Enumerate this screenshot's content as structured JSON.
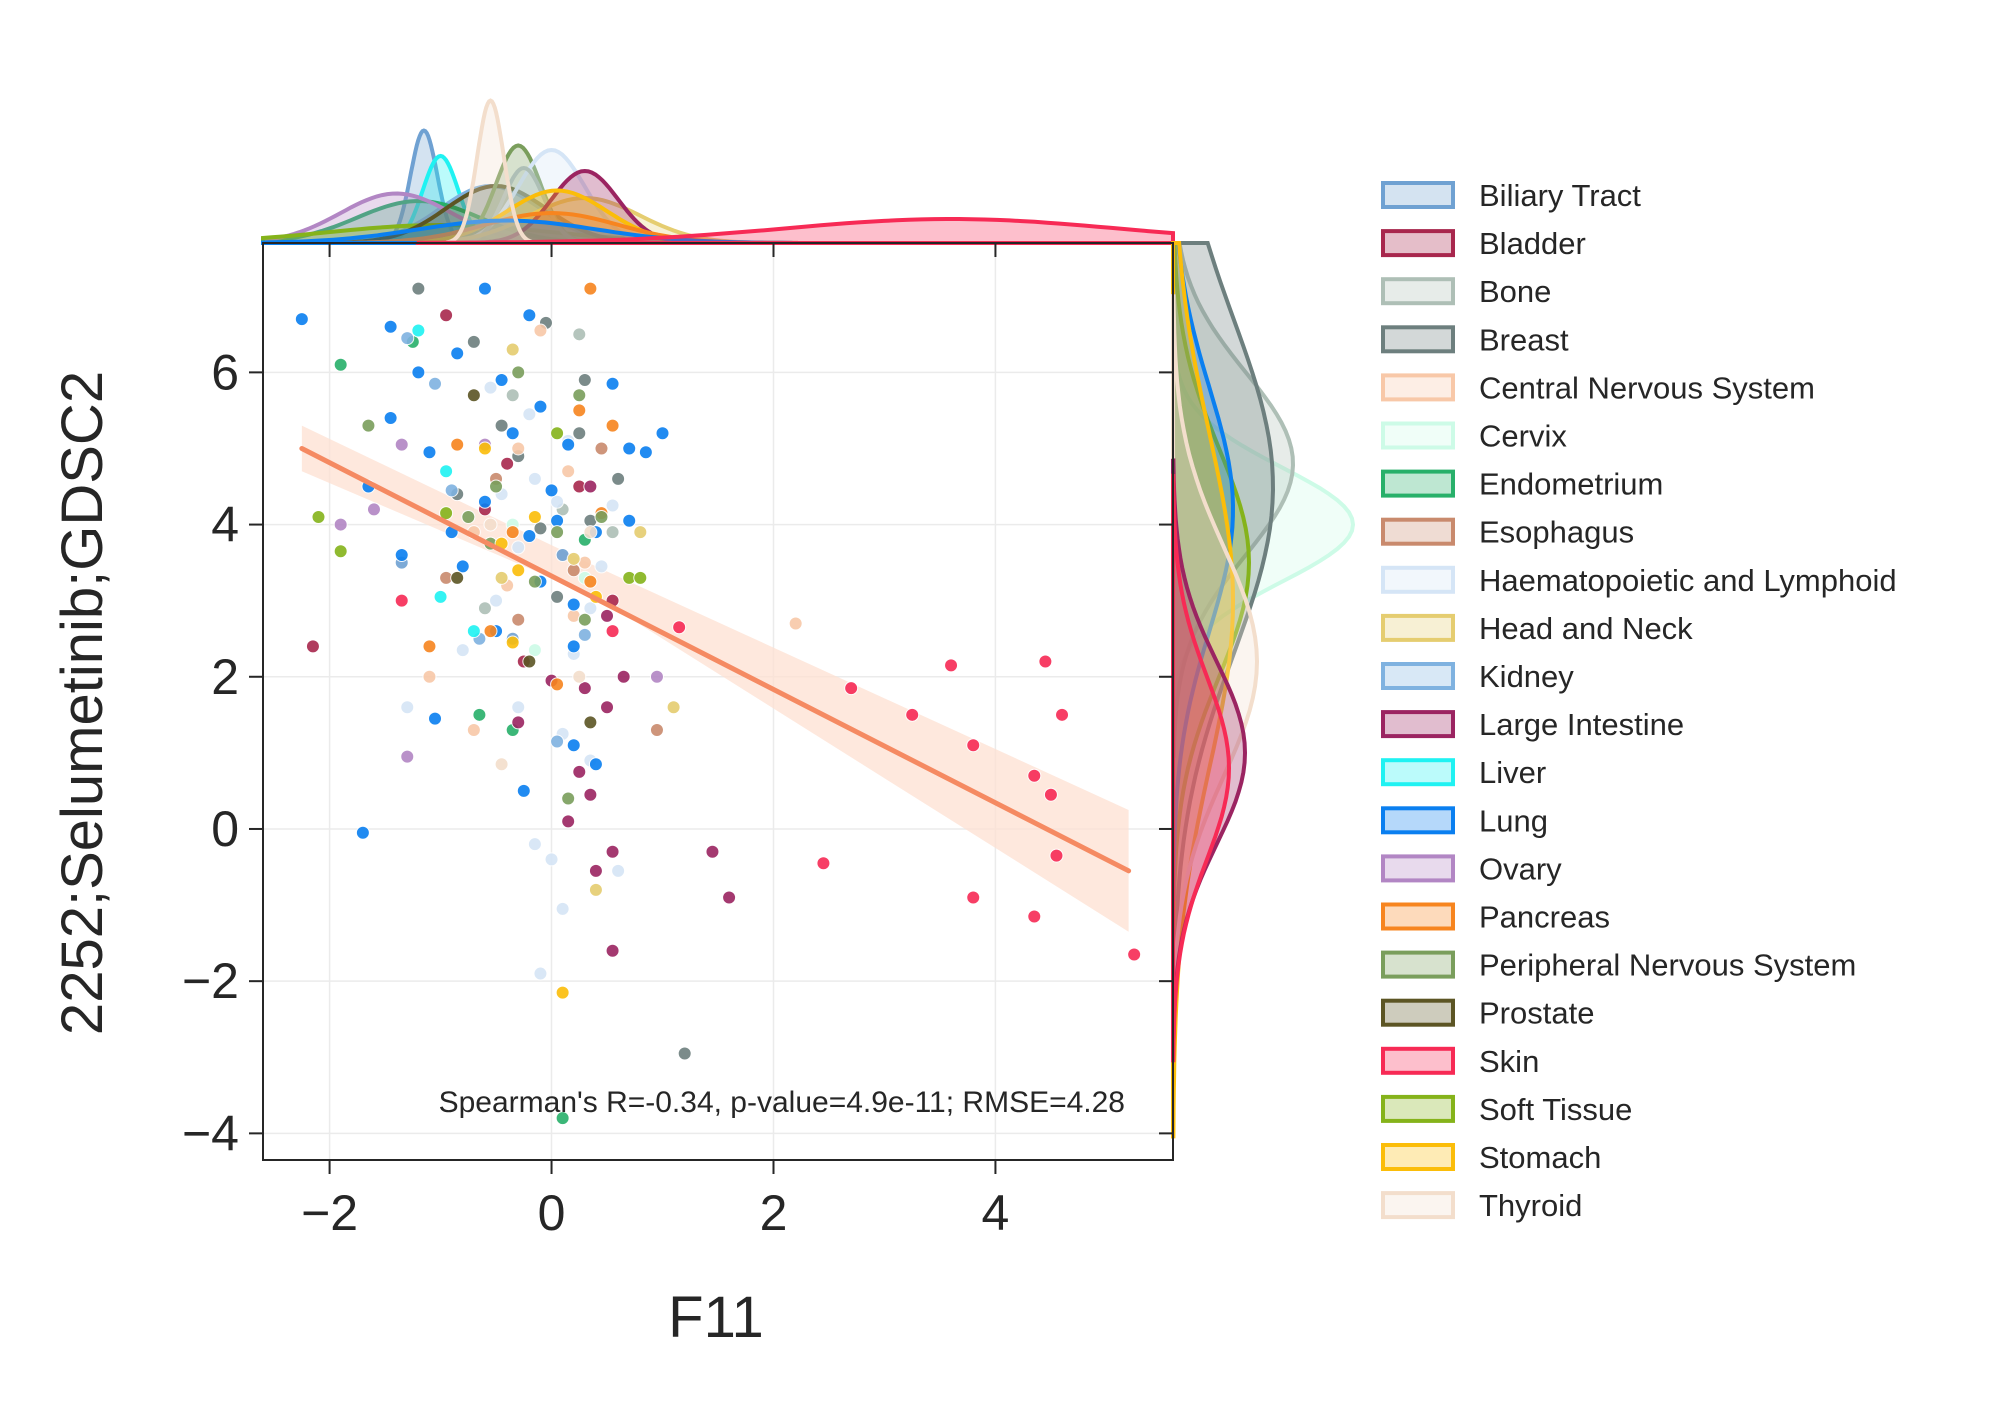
{
  "chart_data": {
    "type": "scatter",
    "xlabel": "F11",
    "ylabel": "2252;Selumetinib;GDSC2",
    "xlim": [
      -2.6,
      5.6
    ],
    "ylim": [
      -4.35,
      7.7
    ],
    "xticks": [
      -2,
      0,
      2,
      4
    ],
    "yticks": [
      -4,
      -2,
      0,
      2,
      4,
      6
    ],
    "x_tick_labels": [
      "−2",
      "0",
      "2",
      "4"
    ],
    "y_tick_labels": [
      "−4",
      "−2",
      "0",
      "2",
      "4",
      "6"
    ],
    "grid": true,
    "legend_position": "right",
    "annotation": "Spearman's R=-0.34, p-value=4.9e-11; RMSE=4.28",
    "regression": {
      "color": "#f58a62",
      "band_color": "#fde0d2",
      "line": [
        [
          -2.25,
          5.0
        ],
        [
          5.2,
          -0.55
        ]
      ],
      "band_upper": [
        [
          -2.25,
          5.3
        ],
        [
          0.4,
          3.45
        ],
        [
          5.2,
          0.25
        ]
      ],
      "band_lower": [
        [
          -2.25,
          4.7
        ],
        [
          0.4,
          3.05
        ],
        [
          5.2,
          -1.35
        ]
      ]
    },
    "series": [
      {
        "name": "Biliary Tract",
        "color": "#6fa1d2",
        "points": [
          [
            -1.35,
            3.5
          ],
          [
            0.1,
            3.6
          ],
          [
            -0.35,
            2.5
          ]
        ]
      },
      {
        "name": "Bladder",
        "color": "#a8274d",
        "points": [
          [
            -2.15,
            2.4
          ],
          [
            -0.95,
            6.75
          ],
          [
            0.55,
            3.0
          ],
          [
            -0.6,
            4.2
          ],
          [
            -0.25,
            2.2
          ],
          [
            0.25,
            4.5
          ],
          [
            -0.4,
            4.8
          ]
        ]
      },
      {
        "name": "Bone",
        "color": "#aebfb6",
        "points": [
          [
            0.25,
            6.5
          ],
          [
            -0.35,
            5.7
          ],
          [
            0.1,
            4.2
          ],
          [
            -0.6,
            2.9
          ],
          [
            0.55,
            3.9
          ]
        ]
      },
      {
        "name": "Breast",
        "color": "#6d7f7e",
        "points": [
          [
            -1.2,
            7.1
          ],
          [
            -0.7,
            6.4
          ],
          [
            -0.05,
            6.65
          ],
          [
            0.3,
            5.9
          ],
          [
            -0.45,
            5.3
          ],
          [
            0.25,
            5.2
          ],
          [
            0.6,
            4.6
          ],
          [
            -0.85,
            4.4
          ],
          [
            -0.1,
            3.95
          ],
          [
            0.05,
            3.05
          ],
          [
            1.2,
            -2.95
          ],
          [
            -0.3,
            4.9
          ],
          [
            0.35,
            4.05
          ]
        ]
      },
      {
        "name": "Central Nervous System",
        "color": "#f8c8a8",
        "points": [
          [
            -0.1,
            6.55
          ],
          [
            2.2,
            2.7
          ],
          [
            -0.3,
            5.0
          ],
          [
            0.15,
            4.7
          ],
          [
            -0.7,
            3.9
          ],
          [
            0.3,
            3.5
          ],
          [
            -0.4,
            3.2
          ],
          [
            0.2,
            2.8
          ],
          [
            -1.1,
            2.0
          ],
          [
            -0.7,
            1.3
          ]
        ]
      },
      {
        "name": "Cervix",
        "color": "#cdfbe7",
        "points": [
          [
            -0.35,
            4.0
          ],
          [
            0.3,
            3.3
          ],
          [
            -0.15,
            2.35
          ]
        ]
      },
      {
        "name": "Endometrium",
        "color": "#28b06a",
        "points": [
          [
            -1.9,
            6.1
          ],
          [
            -1.25,
            6.4
          ],
          [
            -0.35,
            1.3
          ],
          [
            -0.65,
            1.5
          ],
          [
            0.3,
            3.8
          ],
          [
            0.1,
            -3.8
          ]
        ]
      },
      {
        "name": "Esophagus",
        "color": "#c98a6d",
        "points": [
          [
            -0.95,
            3.3
          ],
          [
            -0.3,
            2.75
          ],
          [
            0.2,
            3.4
          ],
          [
            0.95,
            1.3
          ],
          [
            -0.5,
            4.6
          ],
          [
            0.45,
            5.0
          ]
        ]
      },
      {
        "name": "Haematopoietic and Lymphoid",
        "color": "#d5e5f6",
        "points": [
          [
            -0.55,
            5.8
          ],
          [
            -0.2,
            5.45
          ],
          [
            0.15,
            5.1
          ],
          [
            -0.45,
            4.4
          ],
          [
            -0.15,
            4.6
          ],
          [
            0.05,
            4.3
          ],
          [
            -0.3,
            3.7
          ],
          [
            0.45,
            3.45
          ],
          [
            -0.5,
            3.0
          ],
          [
            0.2,
            2.3
          ],
          [
            -0.3,
            1.6
          ],
          [
            0.1,
            1.25
          ],
          [
            0.35,
            0.9
          ],
          [
            -0.15,
            -0.2
          ],
          [
            0.0,
            -0.4
          ],
          [
            0.1,
            -1.05
          ],
          [
            -0.1,
            -1.9
          ],
          [
            0.35,
            2.9
          ],
          [
            -0.8,
            2.35
          ],
          [
            -1.3,
            1.6
          ],
          [
            0.6,
            -0.55
          ],
          [
            0.55,
            4.25
          ]
        ]
      },
      {
        "name": "Head and Neck",
        "color": "#e5cd70",
        "points": [
          [
            -0.35,
            6.3
          ],
          [
            0.2,
            3.55
          ],
          [
            0.8,
            3.9
          ],
          [
            1.1,
            1.6
          ],
          [
            0.4,
            -0.8
          ],
          [
            -0.45,
            3.3
          ]
        ]
      },
      {
        "name": "Kidney",
        "color": "#7fb2e0",
        "points": [
          [
            -1.3,
            6.45
          ],
          [
            -1.05,
            5.85
          ],
          [
            -0.9,
            4.45
          ],
          [
            0.3,
            2.55
          ],
          [
            -0.65,
            2.5
          ],
          [
            0.05,
            1.15
          ]
        ]
      },
      {
        "name": "Large Intestine",
        "color": "#9b2461",
        "points": [
          [
            0.35,
            4.5
          ],
          [
            0.5,
            2.8
          ],
          [
            0.3,
            1.85
          ],
          [
            0.5,
            1.6
          ],
          [
            0.65,
            2.0
          ],
          [
            0.25,
            0.75
          ],
          [
            0.35,
            0.45
          ],
          [
            0.15,
            0.1
          ],
          [
            0.55,
            -0.3
          ],
          [
            0.4,
            -0.55
          ],
          [
            0.55,
            -1.6
          ],
          [
            1.45,
            -0.3
          ],
          [
            1.6,
            -0.9
          ],
          [
            0.0,
            1.95
          ],
          [
            -0.3,
            1.4
          ]
        ]
      },
      {
        "name": "Liver",
        "color": "#1ff2f2",
        "points": [
          [
            -1.2,
            6.55
          ],
          [
            -1.0,
            3.05
          ],
          [
            -0.7,
            2.6
          ],
          [
            -0.95,
            4.7
          ]
        ]
      },
      {
        "name": "Lung",
        "color": "#0a7ff0",
        "points": [
          [
            -2.25,
            6.7
          ],
          [
            -0.6,
            7.1
          ],
          [
            -0.2,
            6.75
          ],
          [
            -1.45,
            6.6
          ],
          [
            -0.85,
            6.25
          ],
          [
            -1.2,
            6.0
          ],
          [
            -0.45,
            5.9
          ],
          [
            0.55,
            5.85
          ],
          [
            -1.45,
            5.4
          ],
          [
            -0.1,
            5.55
          ],
          [
            0.15,
            5.05
          ],
          [
            -1.1,
            4.95
          ],
          [
            -0.35,
            5.2
          ],
          [
            0.7,
            5.0
          ],
          [
            1.0,
            5.2
          ],
          [
            0.85,
            4.95
          ],
          [
            -0.6,
            4.3
          ],
          [
            0.0,
            4.45
          ],
          [
            -0.2,
            3.85
          ],
          [
            -1.35,
            3.6
          ],
          [
            0.05,
            4.05
          ],
          [
            0.4,
            3.9
          ],
          [
            -0.8,
            3.45
          ],
          [
            -0.1,
            3.25
          ],
          [
            0.2,
            2.95
          ],
          [
            -0.5,
            2.6
          ],
          [
            0.2,
            2.4
          ],
          [
            -1.65,
            4.5
          ],
          [
            -1.7,
            -0.05
          ],
          [
            -1.05,
            1.45
          ],
          [
            -0.25,
            0.5
          ],
          [
            0.2,
            1.1
          ],
          [
            0.4,
            0.85
          ],
          [
            0.7,
            4.05
          ],
          [
            -0.9,
            3.9
          ]
        ]
      },
      {
        "name": "Ovary",
        "color": "#b286c4",
        "points": [
          [
            -1.35,
            5.05
          ],
          [
            -1.9,
            4.0
          ],
          [
            -1.6,
            4.2
          ],
          [
            0.95,
            2.0
          ],
          [
            -1.3,
            0.95
          ],
          [
            -0.6,
            5.05
          ]
        ]
      },
      {
        "name": "Pancreas",
        "color": "#f7851f",
        "points": [
          [
            0.35,
            7.1
          ],
          [
            0.55,
            5.3
          ],
          [
            0.25,
            5.5
          ],
          [
            -0.85,
            5.05
          ],
          [
            0.45,
            4.15
          ],
          [
            -0.35,
            3.9
          ],
          [
            0.35,
            3.25
          ],
          [
            -1.1,
            2.4
          ],
          [
            -0.55,
            2.6
          ],
          [
            0.05,
            1.9
          ]
        ]
      },
      {
        "name": "Peripheral Nervous System",
        "color": "#7a9e5c",
        "points": [
          [
            -1.65,
            5.3
          ],
          [
            -0.3,
            6.0
          ],
          [
            0.25,
            5.7
          ],
          [
            -0.5,
            4.5
          ],
          [
            0.05,
            3.9
          ],
          [
            -0.55,
            3.75
          ],
          [
            0.45,
            4.1
          ],
          [
            -0.15,
            3.25
          ],
          [
            0.3,
            2.75
          ],
          [
            -0.75,
            4.1
          ],
          [
            0.15,
            0.4
          ]
        ]
      },
      {
        "name": "Prostate",
        "color": "#5c5524",
        "points": [
          [
            -0.85,
            3.3
          ],
          [
            -0.7,
            5.7
          ],
          [
            -0.2,
            2.2
          ],
          [
            0.35,
            1.4
          ]
        ]
      },
      {
        "name": "Skin",
        "color": "#f72a55",
        "points": [
          [
            1.15,
            2.65
          ],
          [
            2.7,
            1.85
          ],
          [
            3.25,
            1.5
          ],
          [
            3.6,
            2.15
          ],
          [
            3.8,
            1.1
          ],
          [
            4.45,
            2.2
          ],
          [
            4.6,
            1.5
          ],
          [
            4.35,
            0.7
          ],
          [
            4.5,
            0.45
          ],
          [
            4.55,
            -0.35
          ],
          [
            2.45,
            -0.45
          ],
          [
            3.8,
            -0.9
          ],
          [
            4.35,
            -1.15
          ],
          [
            5.25,
            -1.65
          ],
          [
            -1.35,
            3.0
          ],
          [
            0.55,
            2.6
          ]
        ]
      },
      {
        "name": "Soft Tissue",
        "color": "#85b31a",
        "points": [
          [
            -2.1,
            4.1
          ],
          [
            -1.9,
            3.65
          ],
          [
            0.7,
            3.3
          ],
          [
            0.8,
            3.3
          ],
          [
            0.05,
            5.2
          ],
          [
            -0.95,
            4.15
          ]
        ]
      },
      {
        "name": "Stomach",
        "color": "#fbbd09",
        "points": [
          [
            -0.6,
            5.0
          ],
          [
            -0.45,
            3.75
          ],
          [
            -0.35,
            2.45
          ],
          [
            0.1,
            -2.15
          ],
          [
            -0.15,
            4.1
          ],
          [
            0.4,
            3.05
          ],
          [
            -0.3,
            3.4
          ]
        ]
      },
      {
        "name": "Thyroid",
        "color": "#f3decc",
        "points": [
          [
            -0.45,
            0.85
          ],
          [
            -0.55,
            4.0
          ],
          [
            0.25,
            2.0
          ],
          [
            0.35,
            3.9
          ]
        ]
      }
    ],
    "marginals": {
      "top": [
        {
          "name": "Biliary Tract",
          "color": "#6fa1d2",
          "mu": -1.15,
          "sd": 0.12,
          "h": 0.75
        },
        {
          "name": "Liver",
          "color": "#1ff2f2",
          "mu": -1.0,
          "sd": 0.16,
          "h": 0.58
        },
        {
          "name": "Kidney",
          "color": "#7fb2e0",
          "mu": -0.55,
          "sd": 0.45,
          "h": 0.38
        },
        {
          "name": "Endometrium",
          "color": "#28b06a",
          "mu": -1.2,
          "sd": 0.55,
          "h": 0.28
        },
        {
          "name": "Ovary",
          "color": "#b286c4",
          "mu": -1.4,
          "sd": 0.5,
          "h": 0.33
        },
        {
          "name": "Soft Tissue",
          "color": "#85b31a",
          "mu": -1.0,
          "sd": 1.0,
          "h": 0.12
        },
        {
          "name": "Prostate",
          "color": "#5c5524",
          "mu": -0.5,
          "sd": 0.45,
          "h": 0.38
        },
        {
          "name": "Peripheral Nervous System",
          "color": "#7a9e5c",
          "mu": -0.3,
          "sd": 0.2,
          "h": 0.65
        },
        {
          "name": "Haematopoietic and Lymphoid",
          "color": "#d5e5f6",
          "mu": 0.0,
          "sd": 0.3,
          "h": 0.62
        },
        {
          "name": "Bone",
          "color": "#aebfb6",
          "mu": -0.25,
          "sd": 0.18,
          "h": 0.5
        },
        {
          "name": "Head and Neck",
          "color": "#e5cd70",
          "mu": 0.3,
          "sd": 0.5,
          "h": 0.3
        },
        {
          "name": "Large Intestine",
          "color": "#9b2461",
          "mu": 0.3,
          "sd": 0.3,
          "h": 0.48
        },
        {
          "name": "Stomach",
          "color": "#fbbd09",
          "mu": 0.05,
          "sd": 0.45,
          "h": 0.35
        },
        {
          "name": "Pancreas",
          "color": "#f7851f",
          "mu": 0.0,
          "sd": 0.6,
          "h": 0.2
        },
        {
          "name": "Lung",
          "color": "#0a7ff0",
          "mu": -0.4,
          "sd": 0.8,
          "h": 0.15
        },
        {
          "name": "Thyroid",
          "color": "#f3decc",
          "mu": -0.55,
          "sd": 0.12,
          "h": 0.95
        },
        {
          "name": "Skin",
          "color": "#f72a55",
          "mu": 3.6,
          "sd": 1.5,
          "h": 0.16
        }
      ],
      "right": [
        {
          "name": "Cervix",
          "color": "#cdfbe7",
          "mu": 4.0,
          "sd": 0.75,
          "h": 0.9
        },
        {
          "name": "Bone",
          "color": "#aebfb6",
          "mu": 4.8,
          "sd": 1.2,
          "h": 0.6
        },
        {
          "name": "Breast",
          "color": "#6d7f7e",
          "mu": 4.5,
          "sd": 2.2,
          "h": 0.5
        },
        {
          "name": "Soft Tissue",
          "color": "#85b31a",
          "mu": 3.5,
          "sd": 1.5,
          "h": 0.38
        },
        {
          "name": "Lung",
          "color": "#0a7ff0",
          "mu": 4.2,
          "sd": 1.6,
          "h": 0.3
        },
        {
          "name": "Stomach",
          "color": "#fbbd09",
          "mu": 3.0,
          "sd": 2.2,
          "h": 0.3
        },
        {
          "name": "Thyroid",
          "color": "#f3decc",
          "mu": 2.2,
          "sd": 1.5,
          "h": 0.42
        },
        {
          "name": "Large Intestine",
          "color": "#9b2461",
          "mu": 1.0,
          "sd": 1.2,
          "h": 0.36
        },
        {
          "name": "Skin",
          "color": "#f72a55",
          "mu": 0.8,
          "sd": 1.2,
          "h": 0.28
        }
      ]
    }
  }
}
